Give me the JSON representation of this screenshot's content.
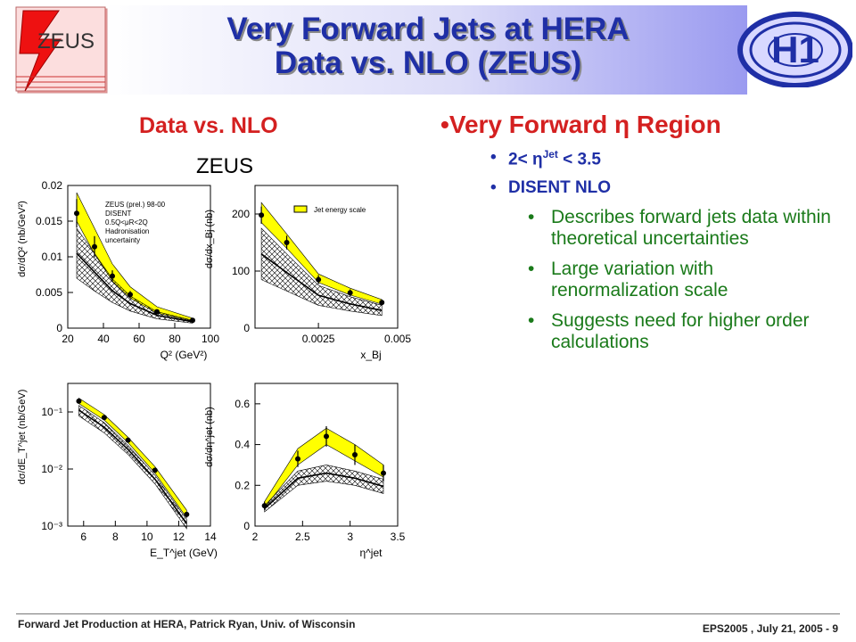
{
  "slide": {
    "title_line1": "Very Forward Jets at HERA",
    "title_line2": "Data vs. NLO (ZEUS)",
    "left_heading": "Data vs. NLO",
    "right_heading": "Very Forward η Region",
    "bullets": [
      {
        "label": "2< η",
        "sup": "Jet",
        "rest": " < 3.5"
      },
      {
        "label": "DISENT NLO"
      }
    ],
    "sub_bullets": [
      "Describes forward jets data within theoretical uncertainties",
      "Large variation with renormalization scale",
      "Suggests need for higher order calculations"
    ],
    "bullet_char": "•",
    "footer_left": "Forward Jet Production at HERA, Patrick Ryan, Univ. of Wisconsin",
    "footer_right": "EPS2005 , July 21, 2005 - 9",
    "zeus_logo_text": "ZEUS",
    "h1_logo_text": "H1"
  },
  "figure": {
    "label": "ZEUS",
    "legend_left": [
      "ZEUS (prel.) 98-00",
      "DISENT",
      "0.5Q<μR<2Q",
      "Hadronisation",
      "uncertainty"
    ],
    "legend_right": "Jet energy scale",
    "colors": {
      "data": "#000000",
      "jes_band": "#ffff00",
      "theory_band": "#000000"
    }
  },
  "chart_data": [
    {
      "type": "scatter",
      "panel": "top-left",
      "xlabel": "Q² (GeV²)",
      "ylabel": "dσ/dQ² (nb/GeV²)",
      "xlim": [
        20,
        100
      ],
      "ylim": [
        0,
        0.02
      ],
      "xticks": [
        "20",
        "40",
        "60",
        "80",
        "100"
      ],
      "yticks": [
        "0",
        "0.005",
        "0.01",
        "0.015",
        "0.02"
      ],
      "log_y": false,
      "x": [
        25,
        35,
        45,
        55,
        70,
        90
      ],
      "data": [
        0.0161,
        0.0114,
        0.0073,
        0.0047,
        0.0023,
        0.0011
      ],
      "err": [
        0.002,
        0.0015,
        0.0008,
        0.0005,
        0.0003,
        0.0002
      ],
      "jes_hi": [
        0.019,
        0.014,
        0.009,
        0.0058,
        0.003,
        0.0014
      ],
      "jes_lo": [
        0.015,
        0.0104,
        0.0066,
        0.0042,
        0.0021,
        0.001
      ],
      "nlo_hi": [
        0.014,
        0.0105,
        0.0069,
        0.0045,
        0.0023,
        0.0011
      ],
      "nlo_lo": [
        0.007,
        0.0052,
        0.0036,
        0.0024,
        0.0013,
        0.0007
      ]
    },
    {
      "type": "scatter",
      "panel": "top-right",
      "xlabel": "x_Bj",
      "ylabel": "dσ/dx_Bj (nb)",
      "xlim": [
        0.0005,
        0.005
      ],
      "ylim": [
        0,
        250
      ],
      "xticks": [
        "0.0025",
        "0.005"
      ],
      "yticks": [
        "0",
        "100",
        "200"
      ],
      "log_y": false,
      "x": [
        0.0007,
        0.0015,
        0.0025,
        0.0035,
        0.0045
      ],
      "data": [
        198,
        150,
        85,
        62,
        45
      ],
      "err": [
        15,
        12,
        8,
        6,
        5
      ],
      "jes_hi": [
        220,
        165,
        95,
        70,
        50
      ],
      "jes_lo": [
        185,
        140,
        80,
        58,
        42
      ],
      "nlo_hi": [
        175,
        130,
        75,
        55,
        40
      ],
      "nlo_lo": [
        85,
        65,
        40,
        30,
        22
      ]
    },
    {
      "type": "scatter",
      "panel": "bottom-left",
      "xlabel": "E_T^jet (GeV)",
      "ylabel": "dσ/dE_T^jet (nb/GeV)",
      "xlim": [
        5,
        14
      ],
      "ylim_log": [
        -3,
        -0.5
      ],
      "xticks": [
        "6",
        "8",
        "10",
        "12",
        "14"
      ],
      "yticks": [
        "10⁻³",
        "10⁻²",
        "10⁻¹"
      ],
      "log_y": true,
      "x": [
        5.7,
        7.3,
        8.8,
        10.5,
        12.5
      ],
      "data": [
        0.155,
        0.08,
        0.032,
        0.0095,
        0.0016
      ],
      "jes_hi": [
        0.175,
        0.09,
        0.036,
        0.011,
        0.0019
      ],
      "jes_lo": [
        0.14,
        0.072,
        0.029,
        0.0085,
        0.0014
      ],
      "nlo_hi": [
        0.13,
        0.065,
        0.026,
        0.0078,
        0.0013
      ],
      "nlo_lo": [
        0.085,
        0.043,
        0.018,
        0.0055,
        0.0009
      ]
    },
    {
      "type": "scatter",
      "panel": "bottom-right",
      "xlabel": "η^jet",
      "ylabel": "dσ/dη^jet (nb)",
      "xlim": [
        2,
        3.5
      ],
      "ylim": [
        0,
        0.7
      ],
      "xticks": [
        "2",
        "2.5",
        "3",
        "3.5"
      ],
      "yticks": [
        "0",
        "0.2",
        "0.4",
        "0.6"
      ],
      "log_y": false,
      "x": [
        2.1,
        2.45,
        2.75,
        3.05,
        3.35
      ],
      "data": [
        0.1,
        0.33,
        0.44,
        0.35,
        0.26
      ],
      "err": [
        0.02,
        0.04,
        0.05,
        0.05,
        0.04
      ],
      "jes_hi": [
        0.12,
        0.38,
        0.48,
        0.4,
        0.3
      ],
      "jes_lo": [
        0.09,
        0.3,
        0.4,
        0.32,
        0.24
      ],
      "nlo_hi": [
        0.1,
        0.27,
        0.3,
        0.27,
        0.23
      ],
      "nlo_lo": [
        0.07,
        0.2,
        0.22,
        0.2,
        0.16
      ]
    }
  ]
}
